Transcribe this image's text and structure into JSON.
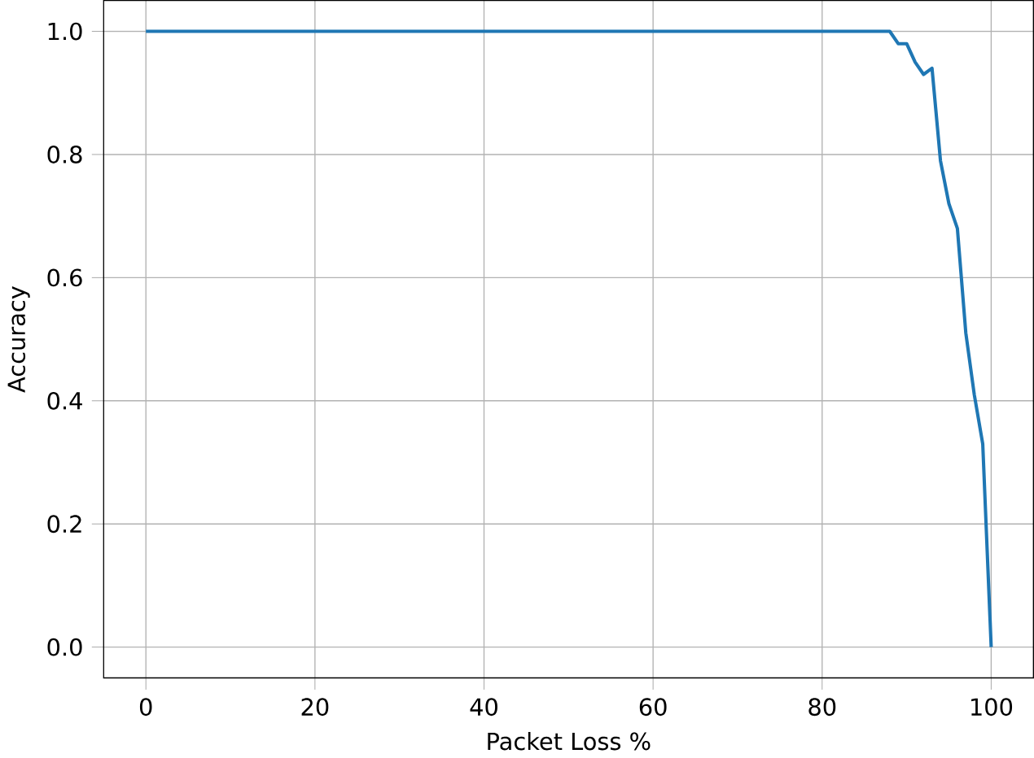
{
  "chart_data": {
    "type": "line",
    "xlabel": "Packet Loss %",
    "ylabel": "Accuracy",
    "x": [
      0,
      88,
      89,
      90,
      91,
      92,
      93,
      94,
      95,
      96,
      97,
      98,
      99,
      100
    ],
    "values": [
      1.0,
      1.0,
      0.98,
      0.98,
      0.95,
      0.93,
      0.94,
      0.79,
      0.72,
      0.68,
      0.51,
      0.41,
      0.33,
      0.0
    ],
    "color": "#1f77b4",
    "xlim": [
      -5,
      105
    ],
    "ylim": [
      -0.05,
      1.05
    ],
    "xticks": [
      0,
      20,
      40,
      60,
      80,
      100
    ],
    "yticks": [
      {
        "value": 0,
        "label": "0.0"
      },
      {
        "value": 0.2,
        "label": "0.2"
      },
      {
        "value": 0.4,
        "label": "0.4"
      },
      {
        "value": 0.6,
        "label": "0.6"
      },
      {
        "value": 0.8,
        "label": "0.8"
      },
      {
        "value": 1.0,
        "label": "1.0"
      }
    ],
    "grid": true
  }
}
